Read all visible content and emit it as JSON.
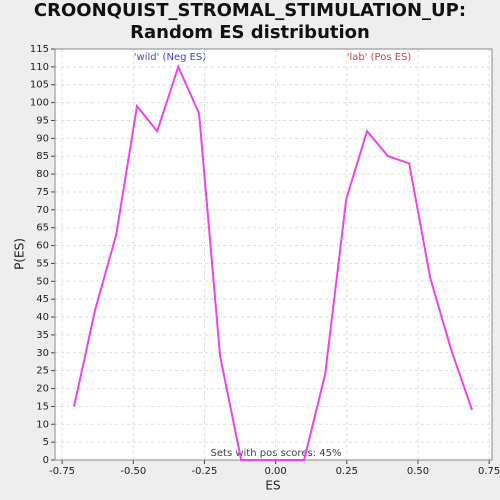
{
  "chart_data": {
    "type": "line",
    "title": "CROONQUIST_STROMAL_STIMULATION_UP: Random ES distribution",
    "x_label": "ES",
    "y_label": "P(ES)",
    "annotations": [
      "'wild' (Neg ES)",
      "'lab' (Pos ES)",
      "Sets with pos scores: 45%"
    ],
    "x": [
      -0.708,
      -0.634,
      -0.56,
      -0.487,
      -0.416,
      -0.342,
      -0.269,
      -0.195,
      -0.121,
      -0.047,
      0.026,
      0.1,
      0.174,
      0.248,
      0.321,
      0.395,
      0.469,
      0.543,
      0.616,
      0.69
    ],
    "series": [
      {
        "name": "P(ES)",
        "color": "#ee44ee",
        "values": [
          15,
          42,
          63,
          99,
          92,
          110,
          97,
          29,
          0,
          0,
          0,
          0,
          24,
          73,
          92,
          85,
          83,
          51,
          31,
          14
        ]
      }
    ],
    "xlim": [
      -0.775,
      0.76
    ],
    "xticks": [
      -0.75,
      {
        "value": -0.5,
        "label": "-0.50"
      },
      -0.25,
      {
        "value": 0,
        "label": "0.00"
      },
      0.25,
      {
        "value": 0.5,
        "label": "0.50"
      },
      0.75
    ],
    "ylim": [
      0,
      115
    ],
    "yticks": [
      0,
      5,
      10,
      15,
      20,
      25,
      30,
      35,
      40,
      45,
      50,
      55,
      60,
      65,
      70,
      75,
      80,
      85,
      90,
      95,
      100,
      105,
      110,
      115
    ],
    "grid": true
  }
}
